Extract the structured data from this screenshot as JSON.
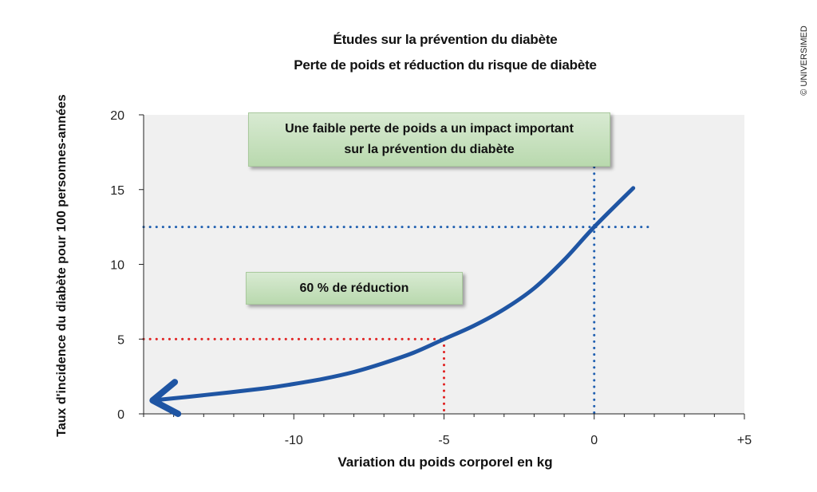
{
  "title_line1": "Études sur la prévention du diabète",
  "title_line2": "Perte de poids et réduction du risque de diabète",
  "copyright": "© UNIVERSIMED",
  "callouts": {
    "top_line1": "Une faible perte de poids a un impact important",
    "top_line2": "sur la prévention du diabète",
    "middle": "60 % de réduction"
  },
  "colors": {
    "curve": "#1f55a3",
    "blue_dotted": "#1f5fb0",
    "red_dotted": "#e02020",
    "plot_background": "#f0f0f0",
    "callout_fill": "#c6e0bb"
  },
  "chart_data": {
    "type": "line",
    "title": "Études sur la prévention du diabète / Perte de poids et réduction du risque de diabète",
    "xlabel": "Variation du poids corporel en kg",
    "ylabel": "Taux d'incidence du diabète pour 100 personnes-années",
    "xlim": [
      -15,
      5
    ],
    "ylim": [
      0,
      20
    ],
    "x_ticks": [
      -10,
      -5,
      0,
      5
    ],
    "x_tick_labels": [
      "-10",
      "-5",
      "0",
      "+5"
    ],
    "y_ticks": [
      0,
      5,
      10,
      15,
      20
    ],
    "y_tick_labels": [
      "0",
      "5",
      "10",
      "15",
      "20"
    ],
    "grid": false,
    "series": [
      {
        "x": [
          -14.7,
          -13,
          -11,
          -10,
          -9,
          -8,
          -7,
          -6,
          -5,
          -4,
          -3,
          -2,
          -1,
          0,
          1.3
        ],
        "y": [
          0.9,
          1.25,
          1.7,
          2.0,
          2.35,
          2.8,
          3.4,
          4.1,
          5.0,
          5.9,
          7.0,
          8.4,
          10.3,
          12.5,
          15.1
        ]
      }
    ],
    "reference_lines": [
      {
        "type": "horizontal",
        "y": 12.5,
        "color": "blue",
        "style": "dotted"
      },
      {
        "type": "vertical",
        "x": 0,
        "color": "blue",
        "style": "dotted"
      },
      {
        "type": "horizontal",
        "y": 5,
        "color": "red",
        "style": "dotted"
      },
      {
        "type": "vertical",
        "x": -5,
        "color": "red",
        "style": "dotted"
      }
    ]
  }
}
